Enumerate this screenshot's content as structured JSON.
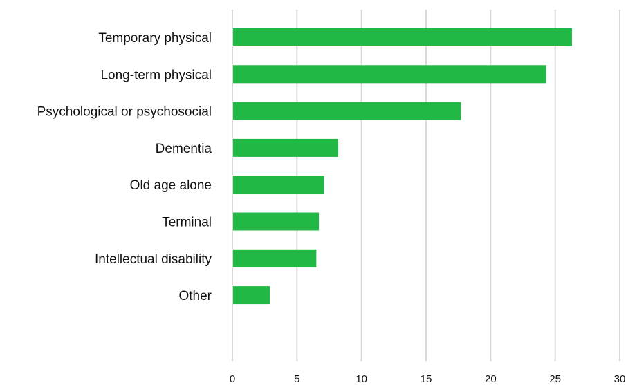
{
  "chart_data": {
    "type": "bar",
    "orientation": "horizontal",
    "categories": [
      "Temporary physical",
      "Long-term physical",
      "Psychological or psychosocial",
      "Dementia",
      "Old age alone",
      "Terminal",
      "Intellectual disability",
      "Other"
    ],
    "values": [
      26.3,
      24.3,
      17.7,
      8.2,
      7.1,
      6.7,
      6.5,
      2.9
    ],
    "xlim": [
      0,
      30
    ],
    "xticks": [
      0,
      5,
      10,
      15,
      20,
      25,
      30
    ],
    "grid": true,
    "legend": "none",
    "colors": {
      "bar": "#22b845",
      "grid": "#d9d9d9",
      "text": "#111111"
    }
  }
}
